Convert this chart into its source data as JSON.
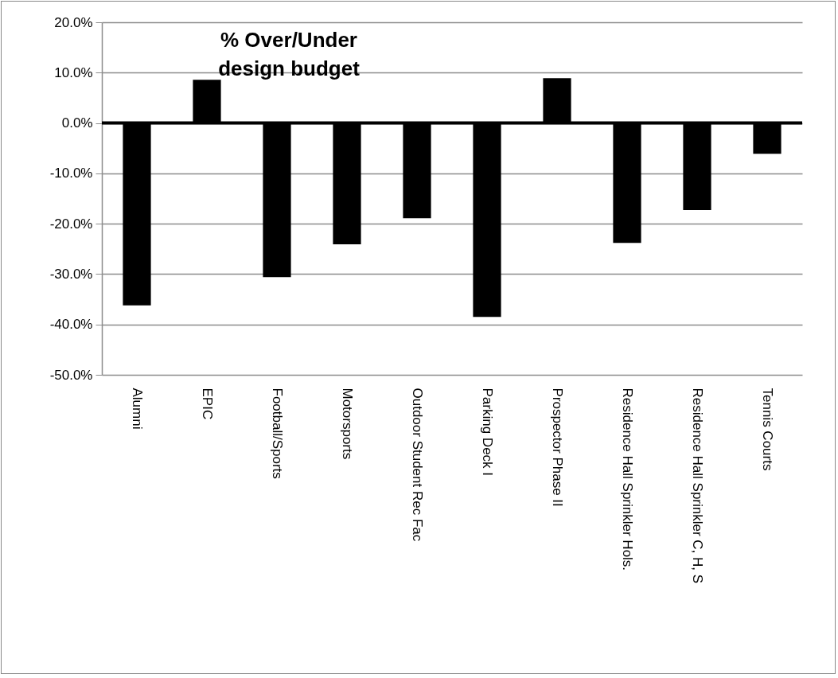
{
  "chart_data": {
    "type": "bar",
    "title": "% Over/Under design budget",
    "categories": [
      "Alumni",
      "EPIC",
      "Football/Sports",
      "Motorsports",
      "Outdoor Student  Rec Fac",
      "Parking Deck I",
      "Prospector Phase II",
      "Residence Hall Sprinkler Hols.",
      "Residence Hall Sprinkler C, H, S",
      "Tennis Courts"
    ],
    "values": [
      -36.2,
      8.6,
      -30.6,
      -24.1,
      -18.9,
      -38.5,
      8.9,
      -23.8,
      -17.3,
      -6.1
    ],
    "color": "#000000",
    "ylim": [
      -50,
      20
    ],
    "yticks": [
      {
        "value": -50,
        "label": "-50.0%"
      },
      {
        "value": -40,
        "label": "-40.0%"
      },
      {
        "value": -30,
        "label": "-30.0%"
      },
      {
        "value": -20,
        "label": "-20.0%"
      },
      {
        "value": -10,
        "label": "-10.0%"
      },
      {
        "value": 0,
        "label": "0.0%"
      },
      {
        "value": 10,
        "label": "10.0%"
      },
      {
        "value": 20,
        "label": "20.0%"
      }
    ],
    "grid": "y",
    "ref_lines": [
      {
        "axis": "y",
        "value": 0,
        "color": "#000000"
      }
    ]
  }
}
